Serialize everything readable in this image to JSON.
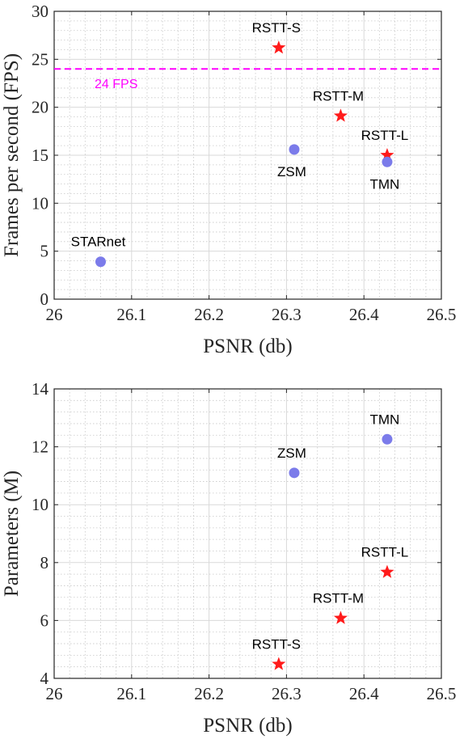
{
  "chart_data": [
    {
      "type": "scatter",
      "xlabel": "PSNR (db)",
      "ylabel": "Frames per second (FPS)",
      "xlim": [
        26,
        26.5
      ],
      "ylim": [
        0,
        30
      ],
      "xticks": [
        26,
        26.1,
        26.2,
        26.3,
        26.4,
        26.5
      ],
      "xtick_labels": [
        "26",
        "26.1",
        "26.2",
        "26.3",
        "26.4",
        "26.5"
      ],
      "yticks": [
        0,
        5,
        10,
        15,
        20,
        25,
        30
      ],
      "ytick_labels": [
        "0",
        "5",
        "10",
        "15",
        "20",
        "25",
        "30"
      ],
      "grid": true,
      "reference_line": {
        "y": 24,
        "label": "24 FPS",
        "color": "#ff00ff",
        "style": "dashed"
      },
      "points": [
        {
          "label": "RSTT-S",
          "x": 26.29,
          "y": 26.2,
          "marker": "star",
          "color": "#ff1a1a",
          "label_pos": "above"
        },
        {
          "label": "RSTT-M",
          "x": 26.37,
          "y": 19.1,
          "marker": "star",
          "color": "#ff1a1a",
          "label_pos": "above"
        },
        {
          "label": "RSTT-L",
          "x": 26.43,
          "y": 15.0,
          "marker": "star",
          "color": "#ff1a1a",
          "label_pos": "above"
        },
        {
          "label": "ZSM",
          "x": 26.31,
          "y": 15.6,
          "marker": "circle",
          "color": "#7b7bea",
          "label_pos": "below"
        },
        {
          "label": "TMN",
          "x": 26.43,
          "y": 14.3,
          "marker": "circle",
          "color": "#7b7bea",
          "label_pos": "below"
        },
        {
          "label": "STARnet",
          "x": 26.06,
          "y": 3.9,
          "marker": "circle",
          "color": "#7b7bea",
          "label_pos": "above"
        }
      ]
    },
    {
      "type": "scatter",
      "xlabel": "PSNR (db)",
      "ylabel": "Parameters (M)",
      "xlim": [
        26,
        26.5
      ],
      "ylim": [
        4,
        14
      ],
      "xticks": [
        26,
        26.1,
        26.2,
        26.3,
        26.4,
        26.5
      ],
      "xtick_labels": [
        "26",
        "26.1",
        "26.2",
        "26.3",
        "26.4",
        "26.5"
      ],
      "yticks": [
        4,
        6,
        8,
        10,
        12,
        14
      ],
      "ytick_labels": [
        "4",
        "6",
        "8",
        "10",
        "12",
        "14"
      ],
      "grid": true,
      "points": [
        {
          "label": "TMN",
          "x": 26.43,
          "y": 12.26,
          "marker": "circle",
          "color": "#7b7bea",
          "label_pos": "above"
        },
        {
          "label": "ZSM",
          "x": 26.31,
          "y": 11.1,
          "marker": "circle",
          "color": "#7b7bea",
          "label_pos": "above"
        },
        {
          "label": "RSTT-L",
          "x": 26.43,
          "y": 7.67,
          "marker": "star",
          "color": "#ff1a1a",
          "label_pos": "above"
        },
        {
          "label": "RSTT-M",
          "x": 26.37,
          "y": 6.08,
          "marker": "star",
          "color": "#ff1a1a",
          "label_pos": "above"
        },
        {
          "label": "RSTT-S",
          "x": 26.29,
          "y": 4.49,
          "marker": "star",
          "color": "#ff1a1a",
          "label_pos": "above"
        }
      ]
    }
  ]
}
